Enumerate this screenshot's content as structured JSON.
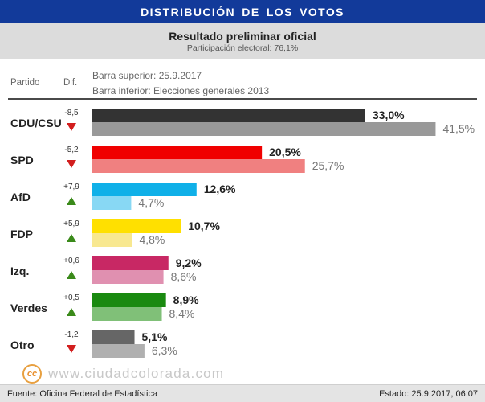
{
  "header": {
    "title": "DISTRIBUCIÓN DE LOS VOTOS",
    "subtitle": "Resultado preliminar oficial",
    "participation": "Participación electoral: 76,1%"
  },
  "columns": {
    "party": "Partido",
    "diff": "Dif."
  },
  "legend": {
    "top": "Barra superior: 25.9.2017",
    "bottom": "Barra inferior: Elecciones generales 2013"
  },
  "watermark": {
    "logo_text": "cc",
    "text": "www.ciudadcolorada.com"
  },
  "footer": {
    "source": "Fuente: Oficina Federal de Estadística",
    "status": "Estado: 25.9.2017, 06:07"
  },
  "chart_data": {
    "type": "bar",
    "orientation": "horizontal",
    "series": [
      {
        "name": "Barra superior: 25.9.2017"
      },
      {
        "name": "Barra inferior: Elecciones generales 2013"
      }
    ],
    "rows": [
      {
        "party": "CDU/CSU",
        "diff": "-8,5",
        "trend": "down",
        "current": 33.0,
        "previous": 41.5,
        "current_label": "33,0%",
        "previous_label": "41,5%",
        "color": "#333333",
        "prev_color": "#999999"
      },
      {
        "party": "SPD",
        "diff": "-5,2",
        "trend": "down",
        "current": 20.5,
        "previous": 25.7,
        "current_label": "20,5%",
        "previous_label": "25,7%",
        "color": "#f00000",
        "prev_color": "#f08080"
      },
      {
        "party": "AfD",
        "diff": "+7,9",
        "trend": "up",
        "current": 12.6,
        "previous": 4.7,
        "current_label": "12,6%",
        "previous_label": "4,7%",
        "color": "#10b0e8",
        "prev_color": "#88d8f4"
      },
      {
        "party": "FDP",
        "diff": "+5,9",
        "trend": "up",
        "current": 10.7,
        "previous": 4.8,
        "current_label": "10,7%",
        "previous_label": "4,8%",
        "color": "#ffe000",
        "prev_color": "#f8e890"
      },
      {
        "party": "Izq.",
        "diff": "+0,6",
        "trend": "up",
        "current": 9.2,
        "previous": 8.6,
        "current_label": "9,2%",
        "previous_label": "8,6%",
        "color": "#c82864",
        "prev_color": "#e090b0"
      },
      {
        "party": "Verdes",
        "diff": "+0,5",
        "trend": "up",
        "current": 8.9,
        "previous": 8.4,
        "current_label": "8,9%",
        "previous_label": "8,4%",
        "color": "#1a8a10",
        "prev_color": "#80c078"
      },
      {
        "party": "Otro",
        "diff": "-1,2",
        "trend": "down",
        "current": 5.1,
        "previous": 6.3,
        "current_label": "5,1%",
        "previous_label": "6,3%",
        "color": "#666666",
        "prev_color": "#b0b0b0"
      }
    ],
    "trend_colors": {
      "up": "#3a8a1a",
      "down": "#d21e1e"
    }
  }
}
